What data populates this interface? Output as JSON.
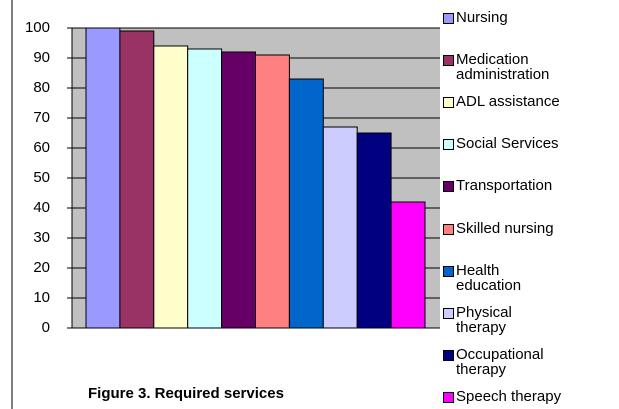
{
  "chart_data": {
    "type": "bar",
    "title": "Figure 3.  Required services",
    "categories": [
      "Nursing",
      "Medication administration",
      "ADL assistance",
      "Social Services",
      "Transportation",
      "Skilled nursing",
      "Health education",
      "Physical therapy",
      "Occupational therapy",
      "Speech therapy"
    ],
    "values": [
      100,
      99,
      94,
      93,
      92,
      91,
      83,
      67,
      65,
      42
    ],
    "colors": [
      "#9999ff",
      "#993366",
      "#ffffcc",
      "#ccffff",
      "#660066",
      "#ff8080",
      "#0066cc",
      "#ccccff",
      "#000080",
      "#ff00ff"
    ],
    "ylim": [
      0,
      100
    ],
    "yticks": [
      0,
      10,
      20,
      30,
      40,
      50,
      60,
      70,
      80,
      90,
      100
    ],
    "grid": true,
    "legend": "right"
  }
}
